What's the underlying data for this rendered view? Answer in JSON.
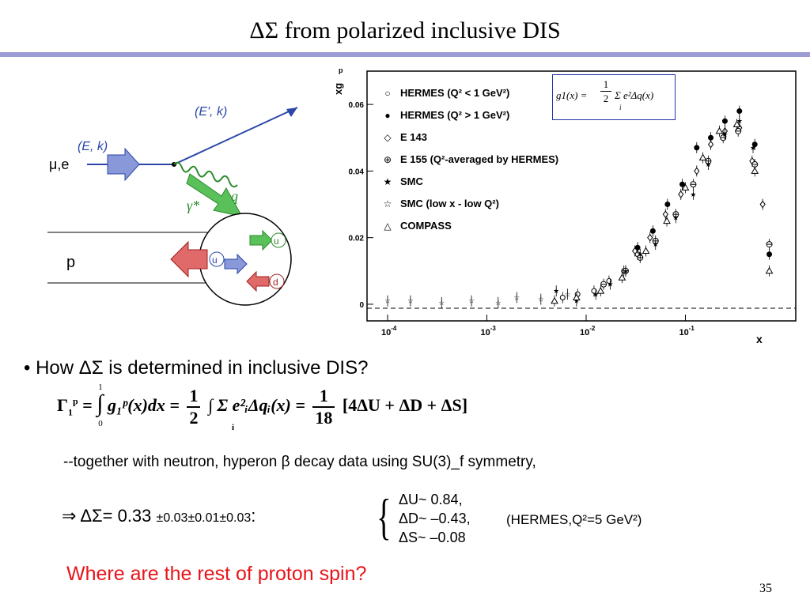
{
  "title": "ΔΣ from polarized inclusive DIS",
  "diagram": {
    "in_label": "(E, k)",
    "out_label": "(E', k)",
    "lepton_label": "μ,e",
    "photon_label": "γ*",
    "q_label": "q",
    "proton_label": "p",
    "quarks": [
      "u",
      "u",
      "d"
    ]
  },
  "plot": {
    "ylabel": "xg",
    "ylabel_sup": "p",
    "ylabel_sub": "1",
    "xlabel": "x",
    "yticks": [
      "0.06",
      "0.04",
      "0.02",
      "0"
    ],
    "xtick_base": "10",
    "xtick_exps": [
      "-4",
      "-3",
      "-2",
      "-1"
    ],
    "legend": [
      {
        "symbol": "○",
        "label": "HERMES (Q² < 1 GeV²)"
      },
      {
        "symbol": "●",
        "label": "HERMES (Q² > 1 GeV²)"
      },
      {
        "symbol": "◇",
        "label": "E 143"
      },
      {
        "symbol": "⊕",
        "label": "E 155 (Q²-averaged by HERMES)"
      },
      {
        "symbol": "★",
        "label": "SMC"
      },
      {
        "symbol": "☆",
        "label": "SMC (low x - low Q²)"
      },
      {
        "symbol": "△",
        "label": "COMPASS"
      }
    ],
    "formula_box": {
      "lhs": "g1(x) =",
      "num": "1",
      "den": "2",
      "rhs": "Σ e²Δq(x)",
      "sub": "i"
    }
  },
  "chart_data": {
    "type": "scatter",
    "xlabel": "x",
    "ylabel": "xg1p",
    "xscale": "log",
    "xlim": [
      0.0001,
      1
    ],
    "ylim": [
      -0.005,
      0.07
    ],
    "series": [
      {
        "name": "HERMES (Q² < 1 GeV²)",
        "x": [
          0.0058,
          0.0082,
          0.012,
          0.017,
          0.024,
          0.033
        ],
        "y": [
          0.002,
          0.003,
          0.004,
          0.007,
          0.01,
          0.015
        ]
      },
      {
        "name": "HERMES (Q² > 1 GeV²)",
        "x": [
          0.033,
          0.047,
          0.066,
          0.093,
          0.13,
          0.18,
          0.25,
          0.35,
          0.5,
          0.7
        ],
        "y": [
          0.017,
          0.022,
          0.03,
          0.036,
          0.047,
          0.05,
          0.055,
          0.058,
          0.048,
          0.015
        ]
      },
      {
        "name": "E 143",
        "x": [
          0.031,
          0.044,
          0.063,
          0.09,
          0.13,
          0.18,
          0.25,
          0.35,
          0.47,
          0.6
        ],
        "y": [
          0.016,
          0.02,
          0.027,
          0.033,
          0.04,
          0.048,
          0.052,
          0.053,
          0.043,
          0.03
        ]
      },
      {
        "name": "E 155 (Q²-averaged by HERMES)",
        "x": [
          0.015,
          0.025,
          0.035,
          0.05,
          0.08,
          0.12,
          0.17,
          0.24,
          0.34,
          0.5,
          0.7
        ],
        "y": [
          0.006,
          0.01,
          0.014,
          0.019,
          0.027,
          0.036,
          0.043,
          0.05,
          0.052,
          0.042,
          0.018
        ]
      },
      {
        "name": "SMC",
        "x": [
          0.005,
          0.008,
          0.0125,
          0.0175,
          0.025,
          0.035,
          0.05,
          0.08,
          0.12,
          0.17,
          0.25,
          0.35,
          0.48
        ],
        "y": [
          0.004,
          0.001,
          0.003,
          0.006,
          0.01,
          0.015,
          0.018,
          0.026,
          0.033,
          0.042,
          0.051,
          0.055,
          0.047
        ]
      },
      {
        "name": "SMC (low x - low Q²)",
        "x": [
          0.0001,
          0.00017,
          0.00035,
          0.0007,
          0.0013,
          0.002,
          0.0035,
          0.0065
        ],
        "y": [
          0.001,
          0.001,
          0.0005,
          0.001,
          0.0005,
          0.002,
          0.0015,
          0.003
        ]
      },
      {
        "name": "COMPASS",
        "x": [
          0.0048,
          0.008,
          0.014,
          0.023,
          0.04,
          0.065,
          0.1,
          0.15,
          0.22,
          0.33,
          0.5,
          0.7
        ],
        "y": [
          0.001,
          0.002,
          0.004,
          0.008,
          0.016,
          0.025,
          0.035,
          0.044,
          0.052,
          0.054,
          0.04,
          0.01
        ]
      }
    ]
  },
  "bullet": "How ΔΣ is determined in inclusive DIS?",
  "formula": {
    "gamma": "Γ",
    "int_upper": "1",
    "int_lower": "0",
    "integrand": "g₁ᵖ(x)dx =",
    "half_num": "1",
    "half_den": "2",
    "sum_text": "∫ Σ e²ᵢΔqᵢ(x) =",
    "sum_sub": "i",
    "frac_num": "1",
    "frac_den": "18",
    "bracket": "[4ΔU + ΔD + ΔS]"
  },
  "note": "--together with neutron, hyperon β decay data using SU(3)_f symmetry,",
  "result": {
    "arrow": "⇒ ΔΣ= 0.33 ",
    "errors": "±0.03±0.01±0.03",
    "colon": ":"
  },
  "values": [
    "ΔU~  0.84,",
    "ΔD~ –0.43,",
    "ΔS~ –0.08"
  ],
  "hermes_note": "(HERMES,Q²=5 GeV²)",
  "question": "Where are the rest of proton spin?",
  "page_number": "35"
}
